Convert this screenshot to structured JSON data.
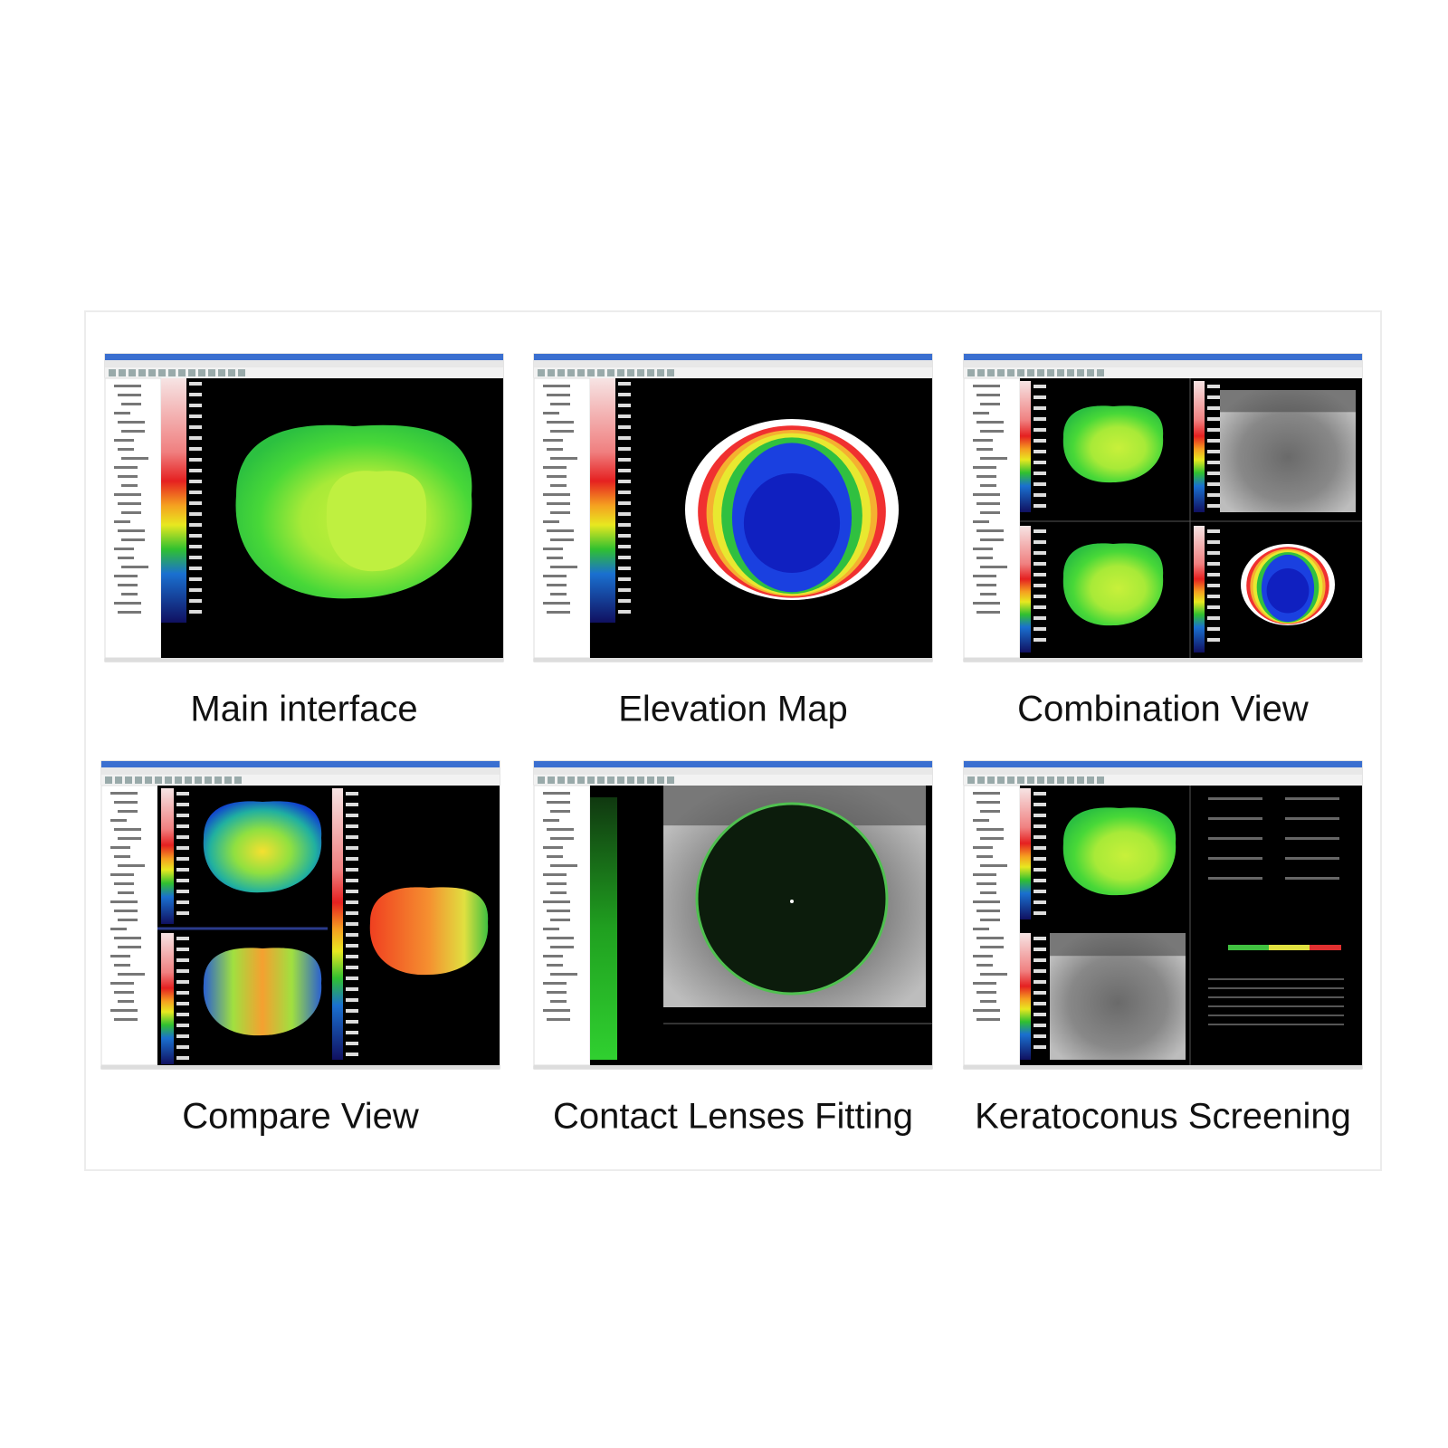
{
  "panels": [
    {
      "caption": "Main interface"
    },
    {
      "caption": "Elevation Map"
    },
    {
      "caption": "Combination View"
    },
    {
      "caption": "Compare View"
    },
    {
      "caption": "Contact Lenses Fitting"
    },
    {
      "caption": "Keratoconus Screening"
    }
  ]
}
